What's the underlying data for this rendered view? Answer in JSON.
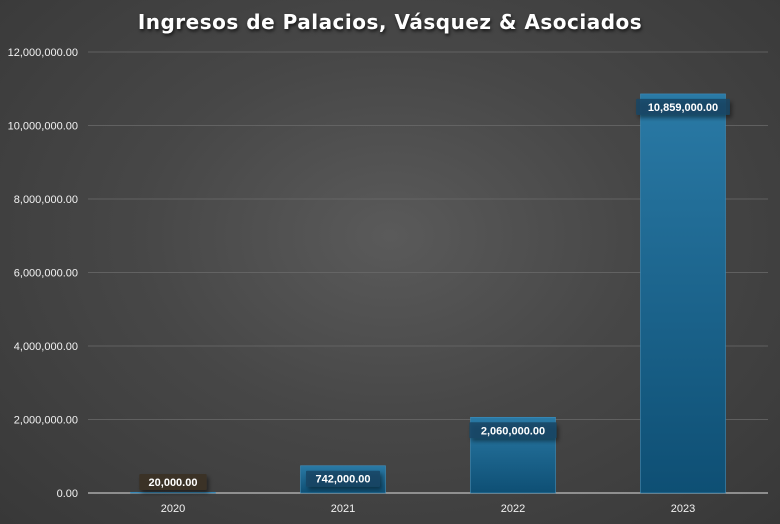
{
  "chart_data": {
    "type": "bar",
    "title": "Ingresos de Palacios, Vásquez & Asociados",
    "categories": [
      "2020",
      "2021",
      "2022",
      "2023"
    ],
    "values": [
      20000,
      742000,
      2060000,
      10859000
    ],
    "data_labels": [
      "20,000.00",
      "742,000.00",
      "2,060,000.00",
      "10,859,000.00"
    ],
    "ylim": [
      0,
      12000000
    ],
    "yticks": [
      0,
      2000000,
      4000000,
      6000000,
      8000000,
      10000000,
      12000000
    ],
    "ytick_labels": [
      "0.00",
      "2,000,000.00",
      "4,000,000.00",
      "6,000,000.00",
      "8,000,000.00",
      "10,000,000.00",
      "12,000,000.00"
    ],
    "grid": true,
    "legend": "none",
    "colors": {
      "bar_top": "#2a7aa6",
      "bar_bottom": "#0e4f74",
      "background": "#474747",
      "gridline": "#6b6b6b",
      "label_box": "#3a3228"
    }
  }
}
